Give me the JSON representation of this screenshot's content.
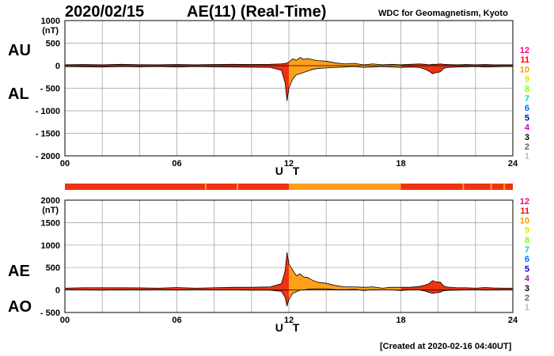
{
  "header": {
    "date": "2020/02/15",
    "title": "AE(11) (Real-Time)",
    "attribution": "WDC for Geomagnetism, Kyoto"
  },
  "footer": {
    "created": "[Created at 2020-02-16 04:40UT]"
  },
  "legend": {
    "numbers": [
      "12",
      "11",
      "10",
      "9",
      "8",
      "7",
      "6",
      "5",
      "4",
      "3",
      "2",
      "1"
    ],
    "colors": [
      "#ff0080",
      "#ff0000",
      "#ff9900",
      "#e6e600",
      "#80ff00",
      "#00cccc",
      "#0066ff",
      "#0000cc",
      "#cc00cc",
      "#000000",
      "#666666",
      "#bbbbbb"
    ]
  },
  "colors": {
    "orange": "#ff9f1a",
    "red": "#ee3311",
    "line": "#000000",
    "grid": "#999999"
  },
  "chart_data": [
    {
      "type": "area",
      "label_upper": "AU",
      "label_lower": "AL",
      "unit_label": "(nT)",
      "xlabel": "U T",
      "x_ticks": [
        "00",
        "06",
        "12",
        "18",
        "24"
      ],
      "ylim": [
        -2000,
        1000
      ],
      "y_ticks": [
        "1000",
        "500",
        "0",
        "- 500",
        "- 1000",
        "- 1500",
        "- 2000"
      ],
      "x": [
        0,
        1,
        2,
        3,
        4,
        5,
        6,
        7,
        8,
        9,
        10,
        11,
        11.6,
        11.8,
        11.9,
        12.0,
        12.2,
        12.4,
        12.6,
        12.8,
        13.0,
        13.3,
        13.6,
        14.0,
        14.5,
        15,
        15.5,
        16,
        16.5,
        17,
        17.5,
        18,
        18.5,
        19,
        19.3,
        19.5,
        19.7,
        19.9,
        20.1,
        20.3,
        20.5,
        21,
        21.5,
        22,
        22.5,
        23,
        23.5,
        24
      ],
      "series": [
        {
          "name": "AU",
          "values": [
            20,
            25,
            20,
            30,
            22,
            20,
            25,
            20,
            25,
            30,
            25,
            30,
            40,
            50,
            60,
            80,
            150,
            120,
            180,
            140,
            160,
            130,
            110,
            100,
            60,
            40,
            50,
            20,
            40,
            20,
            30,
            20,
            30,
            40,
            30,
            20,
            30,
            30,
            40,
            30,
            25,
            20,
            25,
            20,
            25,
            20,
            20,
            20
          ]
        },
        {
          "name": "AL",
          "values": [
            -20,
            -25,
            -30,
            -20,
            -25,
            -20,
            -30,
            -20,
            -25,
            -30,
            -35,
            -40,
            -100,
            -380,
            -780,
            -500,
            -300,
            -200,
            -180,
            -150,
            -120,
            -80,
            -60,
            -50,
            -40,
            -30,
            -20,
            -40,
            -30,
            -20,
            -30,
            -40,
            -30,
            -40,
            -80,
            -120,
            -180,
            -150,
            -140,
            -60,
            -40,
            -30,
            -25,
            -20,
            -30,
            -25,
            -20,
            -20
          ]
        }
      ]
    },
    {
      "type": "area",
      "label_upper": "AE",
      "label_lower": "AO",
      "unit_label": "(nT)",
      "xlabel": "U T",
      "x_ticks": [
        "00",
        "06",
        "12",
        "18",
        "24"
      ],
      "ylim": [
        -500,
        2000
      ],
      "y_ticks": [
        "2000",
        "1500",
        "1000",
        "500",
        "0",
        "- 500"
      ],
      "x": [
        0,
        1,
        2,
        3,
        4,
        5,
        6,
        7,
        8,
        9,
        10,
        11,
        11.6,
        11.8,
        11.9,
        12.0,
        12.2,
        12.4,
        12.6,
        12.8,
        13.0,
        13.3,
        13.6,
        14.0,
        14.5,
        15,
        15.5,
        16,
        16.5,
        17,
        17.5,
        18,
        18.5,
        19,
        19.3,
        19.5,
        19.7,
        19.9,
        20.1,
        20.3,
        20.5,
        21,
        21.5,
        22,
        22.5,
        23,
        23.5,
        24
      ],
      "series": [
        {
          "name": "AE",
          "values": [
            40,
            50,
            50,
            50,
            47,
            40,
            55,
            40,
            50,
            60,
            60,
            70,
            140,
            430,
            840,
            580,
            450,
            320,
            360,
            290,
            280,
            210,
            170,
            150,
            100,
            70,
            70,
            60,
            70,
            40,
            60,
            60,
            60,
            80,
            110,
            140,
            210,
            180,
            180,
            90,
            65,
            50,
            50,
            40,
            55,
            45,
            40,
            40
          ]
        },
        {
          "name": "AO",
          "values": [
            0,
            0,
            -5,
            5,
            -2,
            0,
            -3,
            0,
            0,
            0,
            -5,
            -5,
            -30,
            -165,
            -360,
            -210,
            -75,
            -40,
            0,
            -5,
            20,
            25,
            25,
            25,
            10,
            5,
            15,
            -10,
            5,
            0,
            0,
            -10,
            0,
            0,
            -25,
            -50,
            -75,
            -60,
            -50,
            -15,
            -8,
            -5,
            0,
            0,
            -3,
            -3,
            0,
            0
          ]
        }
      ]
    }
  ]
}
